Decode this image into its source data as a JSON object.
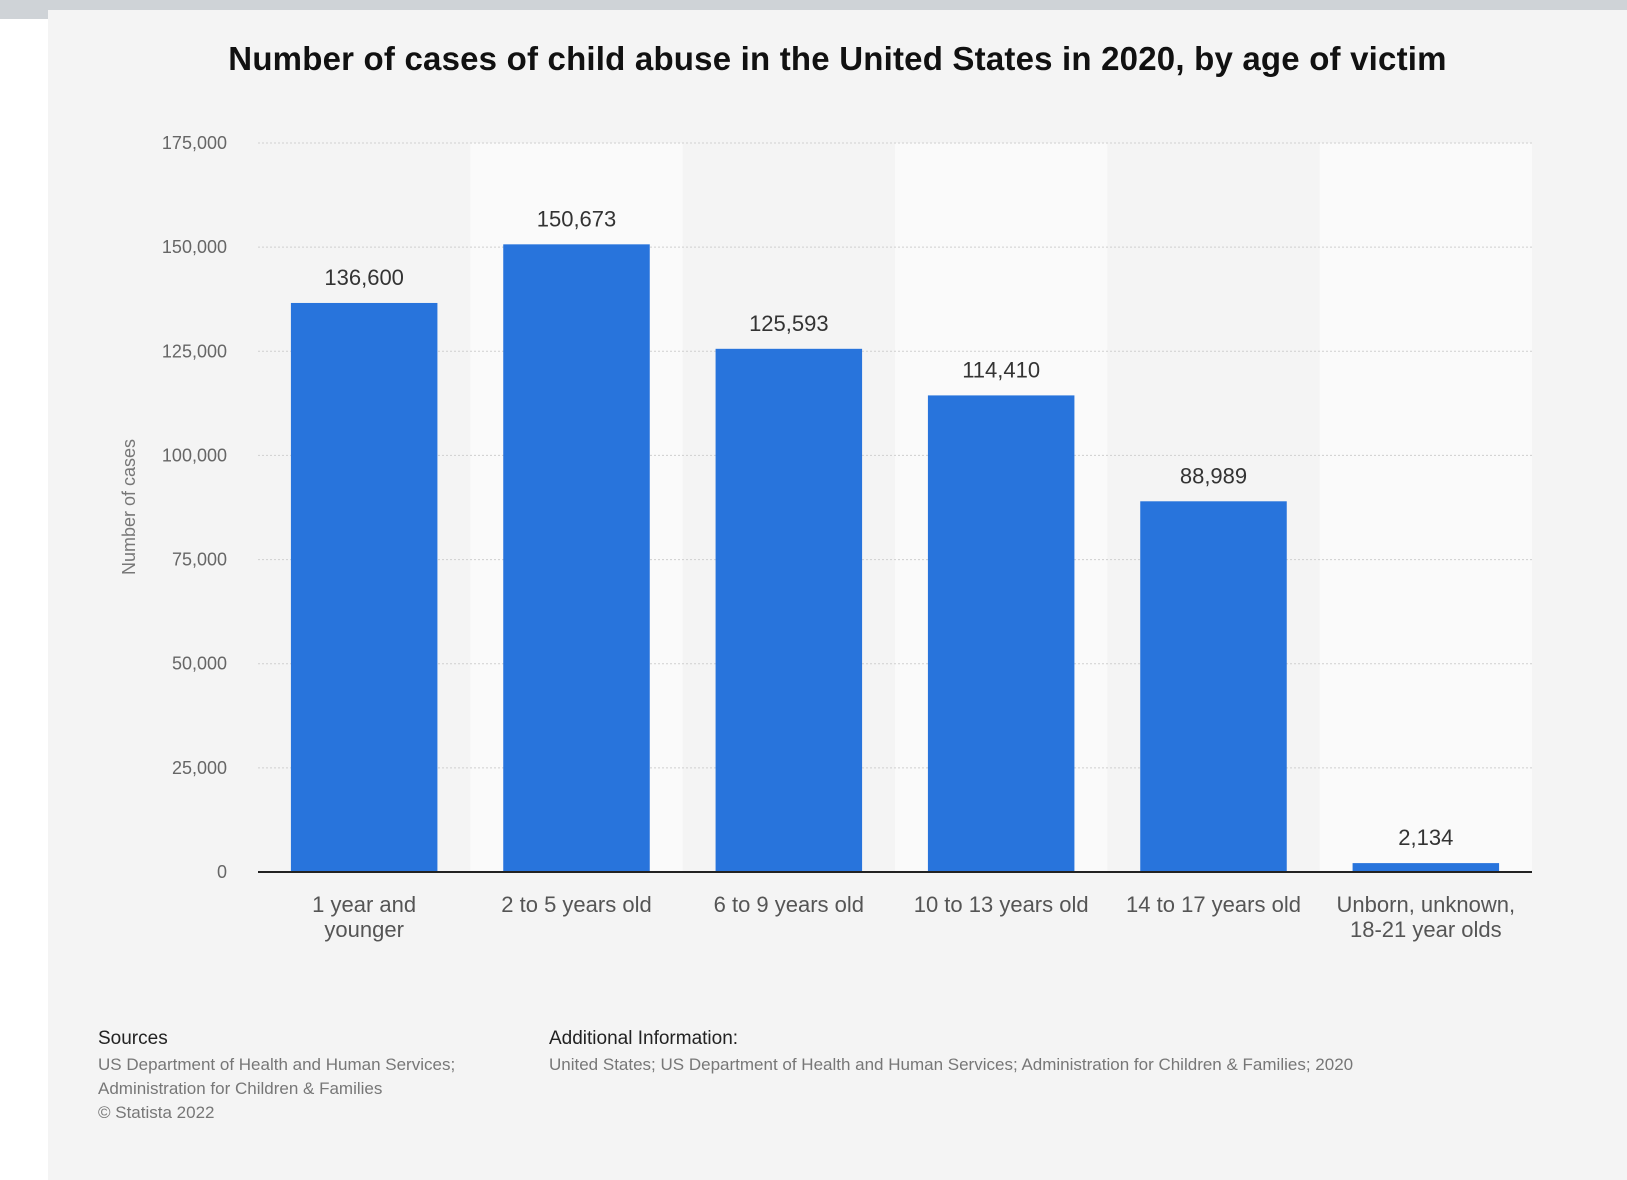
{
  "chart_data": {
    "type": "bar",
    "title": "Number of cases of child abuse in the United States in 2020, by age of victim",
    "xlabel": "",
    "ylabel": "Number of cases",
    "ylim": [
      0,
      175000
    ],
    "yticks": [
      0,
      25000,
      50000,
      75000,
      100000,
      125000,
      150000,
      175000
    ],
    "ytick_labels": [
      "0",
      "25,000",
      "50,000",
      "75,000",
      "100,000",
      "125,000",
      "150,000",
      "175,000"
    ],
    "grid": true,
    "categories": [
      [
        "1 year and",
        "younger"
      ],
      [
        "2 to 5 years old"
      ],
      [
        "6 to 9 years old"
      ],
      [
        "10 to 13 years old"
      ],
      [
        "14 to 17 years old"
      ],
      [
        "Unborn, unknown,",
        "18-21 year olds"
      ]
    ],
    "values": [
      136600,
      150673,
      125593,
      114410,
      88989,
      2134
    ],
    "value_labels": [
      "136,600",
      "150,673",
      "125,593",
      "114,410",
      "88,989",
      "2,134"
    ],
    "bar_color": "#2874dc"
  },
  "footer": {
    "sources_heading": "Sources",
    "sources_line1": "US Department of Health and Human Services;",
    "sources_line2": "Administration for Children & Families",
    "sources_line3": "© Statista 2022",
    "additional_heading": "Additional Information:",
    "additional_text": "United States; US Department of Health and Human Services; Administration for Children & Families; 2020"
  }
}
